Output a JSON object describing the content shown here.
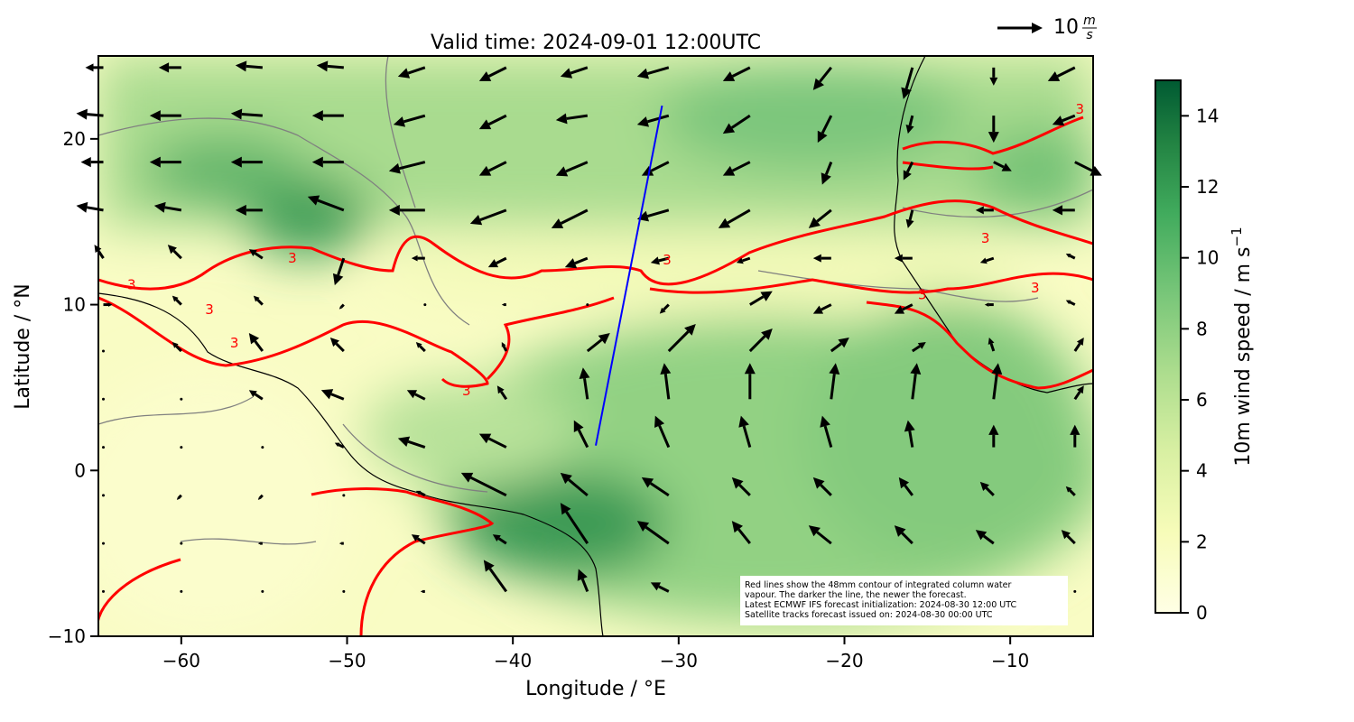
{
  "chart_data": {
    "type": "quiver-map",
    "title": "Valid time: 2024-09-01 12:00UTC",
    "x_label": "Longitude / °E",
    "y_label": "Latitude / °N",
    "xlim": [
      -65,
      -5
    ],
    "ylim": [
      -10,
      25
    ],
    "xticks": [
      {
        "value": -60,
        "label": "−60"
      },
      {
        "value": -50,
        "label": "−50"
      },
      {
        "value": -40,
        "label": "−40"
      },
      {
        "value": -30,
        "label": "−30"
      },
      {
        "value": -20,
        "label": "−20"
      },
      {
        "value": -10,
        "label": "−10"
      }
    ],
    "yticks": [
      {
        "value": -10,
        "label": "−10"
      },
      0,
      10,
      20
    ],
    "colorbar": {
      "label": "10m wind speed / m s",
      "label_sup": "−1",
      "lim": [
        0,
        15
      ],
      "ticks": [
        0,
        2,
        4,
        6,
        8,
        10,
        12,
        14
      ]
    },
    "quiver_key": {
      "value": 10,
      "unit_top": "m",
      "unit_bottom": "s"
    },
    "wind": {
      "lon": [
        -64.7,
        -60,
        -55.1,
        -50.2,
        -45.3,
        -40.4,
        -35.5,
        -30.6,
        -25.7,
        -20.8,
        -15.9,
        -11,
        -6.1
      ],
      "lat": [
        24.3,
        21.4,
        18.6,
        15.7,
        12.8,
        10,
        7.2,
        4.3,
        1.4,
        -1.5,
        -4.4,
        -7.3
      ],
      "u": [
        [
          -4,
          -5,
          -6,
          -6,
          -6,
          -6,
          -6,
          -7,
          -6,
          -4,
          -2,
          0,
          -6
        ],
        [
          -6,
          -7,
          -7,
          -7,
          -7,
          -6,
          -7,
          -7,
          -6,
          -3,
          -1,
          0,
          -5
        ],
        [
          -5,
          -7,
          -7,
          -7,
          -8,
          -6,
          -7,
          -6,
          -6,
          -2,
          -2,
          4,
          6
        ],
        [
          -6,
          -6,
          -6,
          -8,
          -8,
          -8,
          -8,
          -7,
          -7,
          -5,
          -1,
          -4,
          -5
        ],
        [
          -2,
          -3,
          -3,
          -2,
          -3,
          -4,
          -5,
          -4,
          -3,
          -4,
          -4,
          -3,
          -2
        ],
        [
          2,
          -2,
          -2,
          -1,
          0,
          -1,
          0,
          -2,
          5,
          -4,
          -4,
          -2,
          -2
        ],
        [
          0,
          -2,
          -3,
          -3,
          -2,
          -1,
          5,
          6,
          5,
          4,
          3,
          -1,
          2
        ],
        [
          0,
          0,
          -3,
          -5,
          -4,
          -2,
          -1,
          -1,
          0,
          1,
          1,
          1,
          2
        ],
        [
          0,
          0,
          0,
          -2,
          -6,
          -6,
          -3,
          -3,
          -2,
          -2,
          -1,
          0,
          0
        ],
        [
          0,
          -1,
          -1,
          0,
          -2,
          -10,
          -6,
          -6,
          -4,
          -4,
          -3,
          -3,
          -2
        ],
        [
          0,
          0,
          -1,
          -1,
          -3,
          -3,
          -6,
          -7,
          -4,
          -5,
          -4,
          -4,
          -3
        ],
        [
          0,
          0,
          0,
          0,
          -1,
          -5,
          -2,
          -4,
          0,
          0,
          0,
          0,
          0
        ]
      ],
      "v": [
        [
          0,
          0,
          0.5,
          0.5,
          -2,
          -3,
          -2,
          -2,
          -3,
          -5,
          -7,
          -4,
          -3
        ],
        [
          0.5,
          0,
          0.5,
          0,
          -2,
          -3,
          -1,
          -2,
          -4,
          -6,
          -4,
          -6,
          -2
        ],
        [
          0,
          0,
          0,
          0,
          -2,
          -3,
          -3,
          -3,
          -3,
          -5,
          -4,
          -2,
          -3
        ],
        [
          1,
          1,
          0,
          3,
          0,
          -3,
          -4,
          -2,
          -4,
          -4,
          -4,
          0,
          0
        ],
        [
          3,
          3,
          2,
          -6,
          0,
          -2,
          -2,
          -1,
          -1,
          0,
          0,
          -1,
          1
        ],
        [
          0,
          2,
          2,
          -1,
          0,
          0,
          0,
          -2,
          3,
          -2,
          -2,
          0,
          1
        ],
        [
          0,
          2,
          4,
          3,
          2,
          2,
          4,
          6,
          5,
          3,
          2,
          3,
          3
        ],
        [
          0,
          0,
          2,
          2,
          2,
          3,
          7,
          8,
          8,
          8,
          8,
          8,
          3
        ],
        [
          0,
          0,
          0,
          1,
          2,
          3,
          6,
          7,
          7,
          7,
          6,
          5,
          5
        ],
        [
          0,
          -1,
          -1,
          0,
          1,
          5,
          5,
          4,
          4,
          4,
          4,
          3,
          2
        ],
        [
          0,
          0,
          0,
          0,
          2,
          2,
          9,
          5,
          5,
          4,
          4,
          3,
          3
        ],
        [
          0,
          0,
          0,
          0,
          0,
          7,
          5,
          2,
          0,
          0,
          0,
          0,
          0
        ]
      ]
    },
    "track": {
      "lon": [
        -35,
        -31
      ],
      "lat": [
        1.5,
        22
      ],
      "color": "#0000ff"
    },
    "contour_labels": [
      {
        "text": "3",
        "lon": -53.3,
        "lat": 12.8
      },
      {
        "text": "3",
        "lon": -63,
        "lat": 11.2
      },
      {
        "text": "3",
        "lon": -58.3,
        "lat": 9.7
      },
      {
        "text": "3",
        "lon": -56.8,
        "lat": 7.7
      },
      {
        "text": "3",
        "lon": -42.8,
        "lat": 4.8
      },
      {
        "text": "3",
        "lon": -30.7,
        "lat": 12.7
      },
      {
        "text": "3",
        "lon": -11.5,
        "lat": 14
      },
      {
        "text": "3",
        "lon": -8.5,
        "lat": 11
      },
      {
        "text": "3",
        "lon": -5.8,
        "lat": 21.8
      },
      {
        "text": "3",
        "lon": -15.3,
        "lat": 10.6
      }
    ],
    "contour_color": "#ff0000",
    "annotation": [
      "Red lines show the 48mm contour of integrated column water",
      "vapour. The darker the line, the newer the forecast.",
      "Latest ECMWF IFS forecast initialization: 2024-08-30 12:00 UTC",
      "Satellite tracks forecast issued on: 2024-08-30 00:00 UTC"
    ]
  }
}
